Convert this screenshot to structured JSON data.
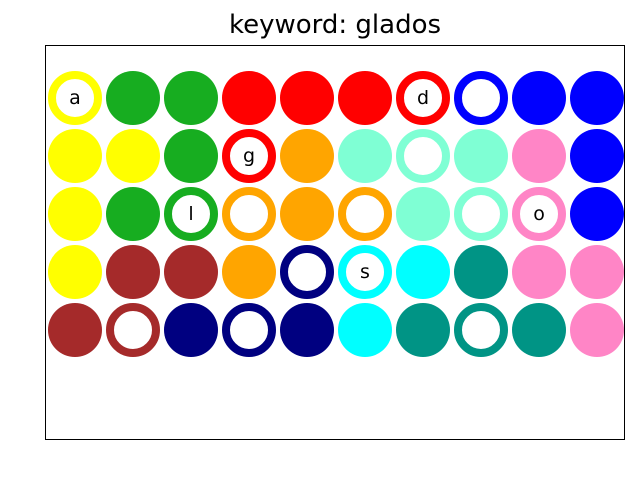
{
  "title": "keyword: glados",
  "palette": {
    "yellow": "#ffff00",
    "green": "#17ad20",
    "red": "#ff0000",
    "blue": "#0000ff",
    "orange": "#ffa500",
    "aquamarine": "#7fffd4",
    "pink": "#ff85c6",
    "brown": "#a52a2a",
    "navy": "#000080",
    "cyan": "#00ffff",
    "teal": "#009485"
  },
  "grid": [
    [
      {
        "color": "yellow",
        "style": "ring",
        "letter": "a"
      },
      {
        "color": "green",
        "style": "filled"
      },
      {
        "color": "green",
        "style": "filled"
      },
      {
        "color": "red",
        "style": "filled"
      },
      {
        "color": "red",
        "style": "filled"
      },
      {
        "color": "red",
        "style": "filled"
      },
      {
        "color": "red",
        "style": "ring",
        "letter": "d"
      },
      {
        "color": "blue",
        "style": "ring"
      },
      {
        "color": "blue",
        "style": "filled"
      },
      {
        "color": "blue",
        "style": "filled"
      }
    ],
    [
      {
        "color": "yellow",
        "style": "filled"
      },
      {
        "color": "yellow",
        "style": "filled"
      },
      {
        "color": "green",
        "style": "filled"
      },
      {
        "color": "red",
        "style": "ring",
        "letter": "g"
      },
      {
        "color": "orange",
        "style": "filled"
      },
      {
        "color": "aquamarine",
        "style": "filled"
      },
      {
        "color": "aquamarine",
        "style": "ring"
      },
      {
        "color": "aquamarine",
        "style": "filled"
      },
      {
        "color": "pink",
        "style": "filled"
      },
      {
        "color": "blue",
        "style": "filled"
      }
    ],
    [
      {
        "color": "yellow",
        "style": "filled"
      },
      {
        "color": "green",
        "style": "filled"
      },
      {
        "color": "green",
        "style": "ring",
        "letter": "l"
      },
      {
        "color": "orange",
        "style": "ring"
      },
      {
        "color": "orange",
        "style": "filled"
      },
      {
        "color": "orange",
        "style": "ring"
      },
      {
        "color": "aquamarine",
        "style": "filled"
      },
      {
        "color": "aquamarine",
        "style": "ring"
      },
      {
        "color": "pink",
        "style": "ring",
        "letter": "o"
      },
      {
        "color": "blue",
        "style": "filled"
      }
    ],
    [
      {
        "color": "yellow",
        "style": "filled"
      },
      {
        "color": "brown",
        "style": "filled"
      },
      {
        "color": "brown",
        "style": "filled"
      },
      {
        "color": "orange",
        "style": "filled"
      },
      {
        "color": "navy",
        "style": "ring"
      },
      {
        "color": "cyan",
        "style": "ring",
        "letter": "s"
      },
      {
        "color": "cyan",
        "style": "filled"
      },
      {
        "color": "teal",
        "style": "filled"
      },
      {
        "color": "pink",
        "style": "filled"
      },
      {
        "color": "pink",
        "style": "filled"
      }
    ],
    [
      {
        "color": "brown",
        "style": "filled"
      },
      {
        "color": "brown",
        "style": "ring"
      },
      {
        "color": "navy",
        "style": "filled"
      },
      {
        "color": "navy",
        "style": "ring"
      },
      {
        "color": "navy",
        "style": "filled"
      },
      {
        "color": "cyan",
        "style": "filled"
      },
      {
        "color": "teal",
        "style": "filled"
      },
      {
        "color": "teal",
        "style": "ring"
      },
      {
        "color": "teal",
        "style": "filled"
      },
      {
        "color": "pink",
        "style": "filled"
      }
    ]
  ]
}
